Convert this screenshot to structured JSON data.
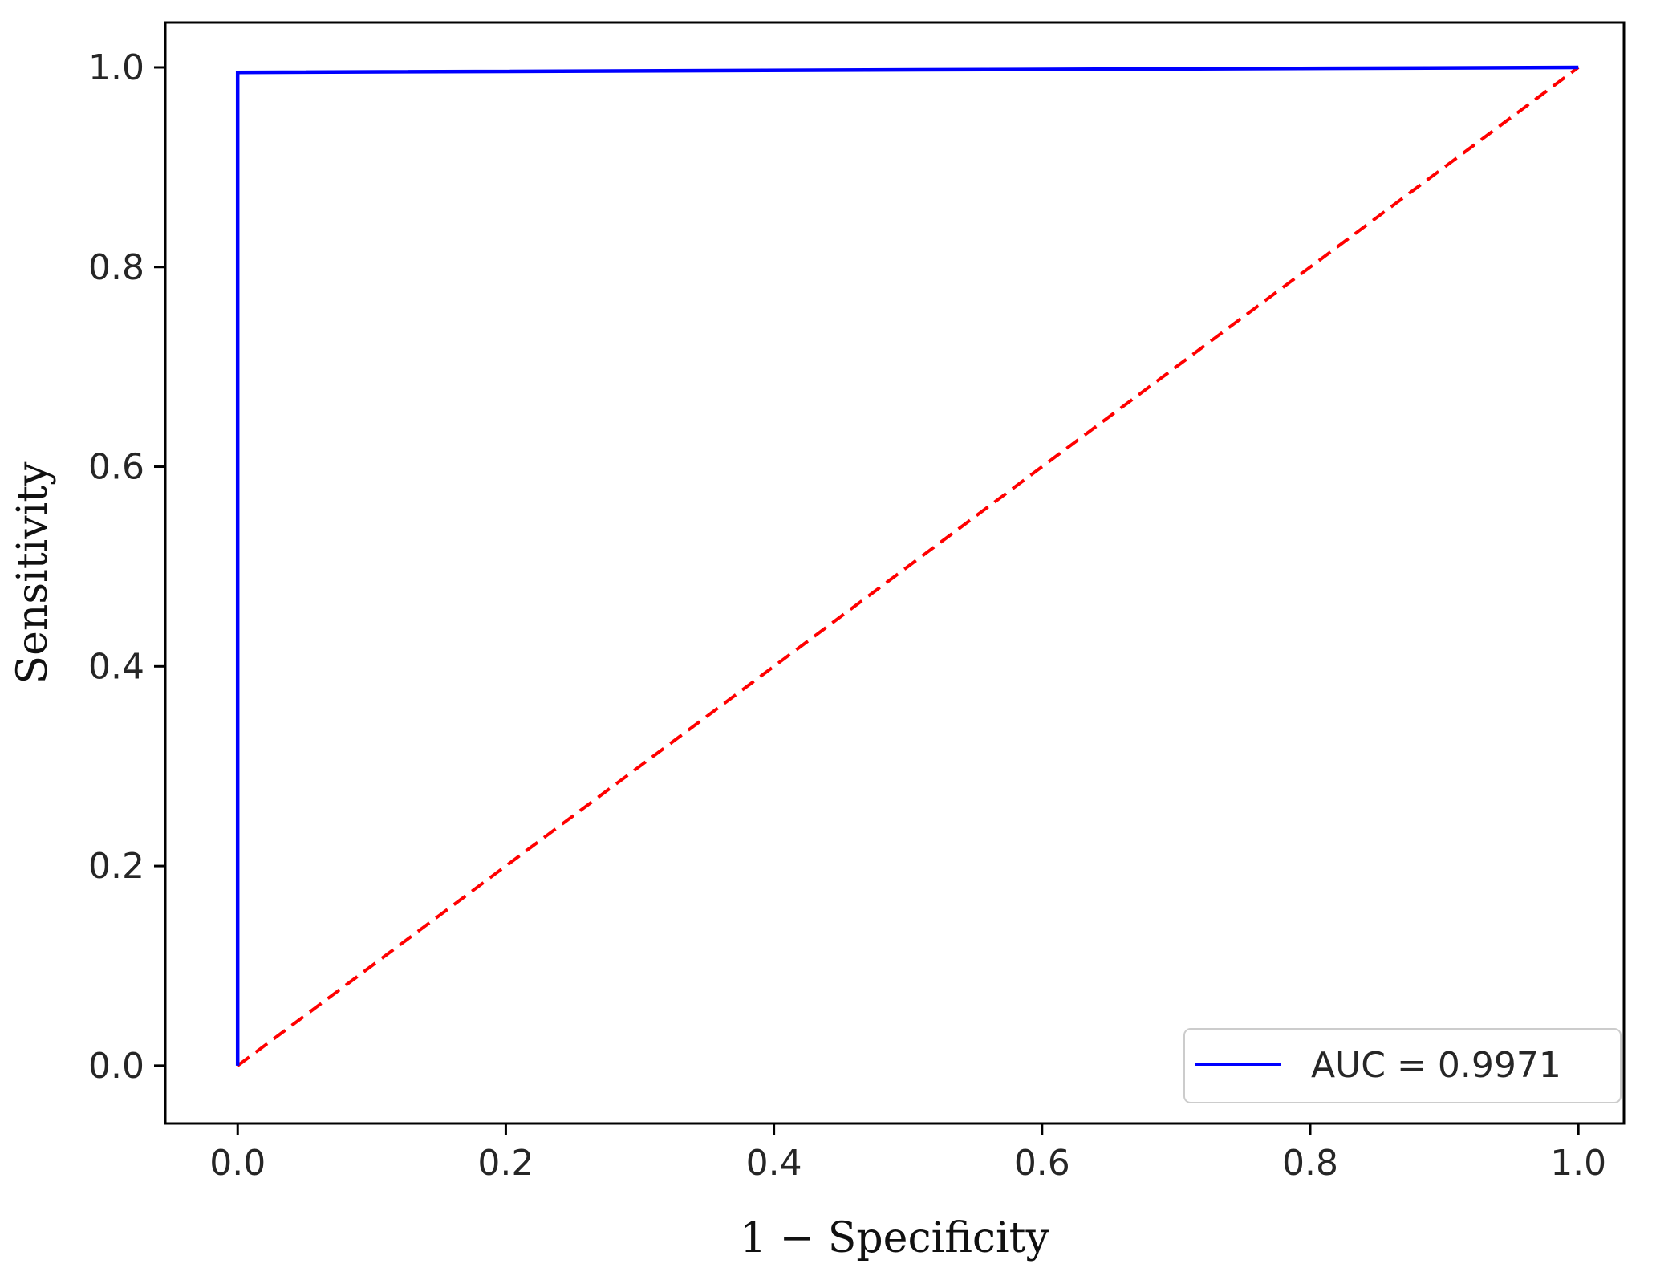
{
  "chart_data": {
    "type": "line",
    "xlabel": "1 − Specificity",
    "ylabel": "Sensitivity",
    "xlim": [
      -0.054,
      1.034
    ],
    "ylim": [
      -0.058,
      1.045
    ],
    "x_ticks": [
      "0.0",
      "0.2",
      "0.4",
      "0.6",
      "0.8",
      "1.0"
    ],
    "y_ticks": [
      "0.0",
      "0.2",
      "0.4",
      "0.6",
      "0.8",
      "1.0"
    ],
    "grid": false,
    "legend_position": "bottom-right",
    "series": [
      {
        "name": "AUC = 0.9971",
        "color": "#0000ff",
        "style": "solid",
        "x": [
          0.0,
          0.0,
          1.0
        ],
        "y": [
          0.0,
          0.995,
          1.0
        ]
      },
      {
        "color": "#ff0000",
        "style": "dashed",
        "x": [
          0.0,
          1.0
        ],
        "y": [
          0.0,
          1.0
        ]
      }
    ]
  }
}
